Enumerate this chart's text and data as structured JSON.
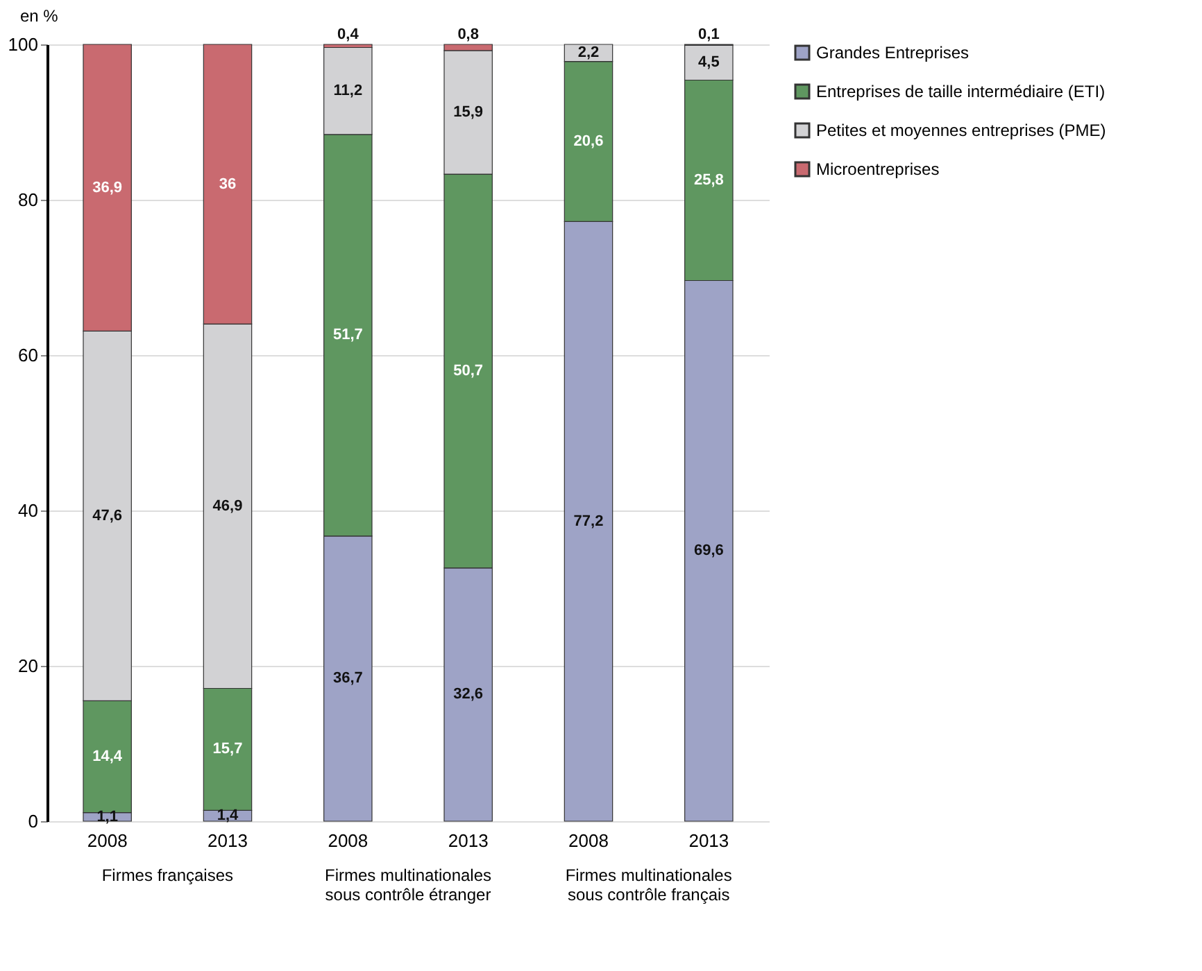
{
  "chart_data": {
    "type": "bar",
    "stacked": true,
    "ylabel": "en %",
    "categories": [
      "2008",
      "2013",
      "2008",
      "2013",
      "2008",
      "2013"
    ],
    "series": [
      {
        "name": "Grandes Entreprises",
        "color": "#9ea3c6",
        "values": [
          1.1,
          1.4,
          36.7,
          32.6,
          77.2,
          69.6
        ]
      },
      {
        "name": "Entreprises de taille intermédiaire (ETI)",
        "color": "#5f9760",
        "values": [
          14.4,
          15.7,
          51.7,
          50.7,
          20.6,
          25.8
        ]
      },
      {
        "name": "Petites et moyennes entreprises (PME)",
        "color": "#d2d2d4",
        "values": [
          47.6,
          46.9,
          11.2,
          15.9,
          2.2,
          4.5
        ]
      },
      {
        "name": "Microentreprises",
        "color": "#c96a70",
        "values": [
          36.9,
          36,
          0.4,
          0.8,
          null,
          0.1
        ]
      }
    ],
    "value_labels": [
      [
        "1,1",
        "1,4",
        "36,7",
        "32,6",
        "77,2",
        "69,6"
      ],
      [
        "14,4",
        "15,7",
        "51,7",
        "50,7",
        "20,6",
        "25,8"
      ],
      [
        "47,6",
        "46,9",
        "11,2",
        "15,9",
        "2,2",
        "4,5"
      ],
      [
        "36,9",
        "36",
        "0,4",
        "0,8",
        null,
        "0,1"
      ]
    ],
    "annotations": [
      "Firmes françaises",
      "Firmes multinationales\nsous contrôle étranger",
      "Firmes multinationales\nsous contrôle français"
    ],
    "ylim": [
      0,
      100
    ],
    "yticks": [
      0,
      20,
      40,
      60,
      80,
      100
    ],
    "grid": "y",
    "legend": "top right"
  }
}
